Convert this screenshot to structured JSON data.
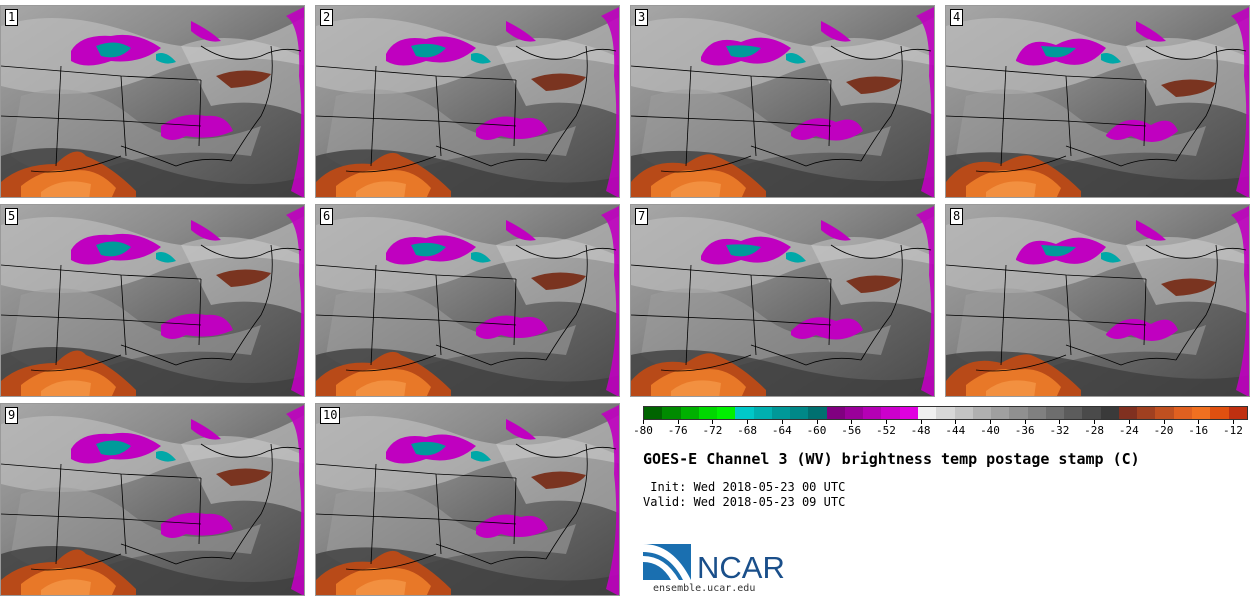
{
  "panels": [
    {
      "label": "1"
    },
    {
      "label": "2"
    },
    {
      "label": "3"
    },
    {
      "label": "4"
    },
    {
      "label": "5"
    },
    {
      "label": "6"
    },
    {
      "label": "7"
    },
    {
      "label": "8"
    },
    {
      "label": "9"
    },
    {
      "label": "10"
    }
  ],
  "colorbar": {
    "colors": [
      "#006400",
      "#008a00",
      "#00b000",
      "#00d800",
      "#00f000",
      "#00c8c8",
      "#00b0b0",
      "#009898",
      "#008888",
      "#007070",
      "#800080",
      "#9a009a",
      "#b400b4",
      "#cc00cc",
      "#e000e0",
      "#f0f0f0",
      "#d8d8d8",
      "#c4c4c4",
      "#b0b0b0",
      "#a0a0a0",
      "#909090",
      "#808080",
      "#6e6e6e",
      "#5c5c5c",
      "#4a4a4a",
      "#3a3a3a",
      "#803020",
      "#a04020",
      "#c05020",
      "#e06020",
      "#f07020",
      "#e05010",
      "#c03010"
    ],
    "ticks": [
      "-80",
      "-76",
      "-72",
      "-68",
      "-64",
      "-60",
      "-56",
      "-52",
      "-48",
      "-44",
      "-40",
      "-36",
      "-32",
      "-28",
      "-24",
      "-20",
      "-16",
      "-12"
    ]
  },
  "title": "GOES-E Channel 3 (WV) brightness temp postage stamp (C)",
  "init_text": " Init: Wed 2018-05-23 00 UTC",
  "valid_text": "Valid: Wed 2018-05-23 09 UTC",
  "logo_text": "NCAR",
  "url": "ensemble.ucar.edu",
  "colors": {
    "magenta": "#c000c0",
    "teal": "#009a9a",
    "orange": "#d86020",
    "grey": "#8e8e8e"
  }
}
